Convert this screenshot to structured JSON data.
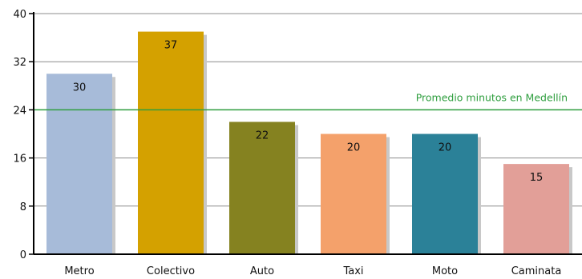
{
  "chart_data": {
    "type": "bar",
    "title": "",
    "xlabel": "",
    "ylabel": "",
    "categories": [
      "Metro",
      "Colectivo",
      "Auto",
      "Taxi",
      "Moto",
      "Caminata"
    ],
    "values": [
      30,
      37,
      22,
      20,
      20,
      15
    ],
    "value_labels": [
      "30",
      "37",
      "22",
      "20",
      "20",
      "15"
    ],
    "bar_colors": [
      "#a7bbd9",
      "#d4a100",
      "#858220",
      "#f4a16b",
      "#2b8198",
      "#e29f98"
    ],
    "ylim": [
      0,
      40
    ],
    "yticks": [
      0,
      8,
      16,
      24,
      32,
      40
    ],
    "ytick_labels": [
      "0",
      "8",
      "16",
      "24",
      "32",
      "40"
    ],
    "grid": true,
    "reference_line": {
      "value": 24,
      "label": "Promedio minutos en Medellín",
      "color": "#2e9e3e"
    }
  }
}
